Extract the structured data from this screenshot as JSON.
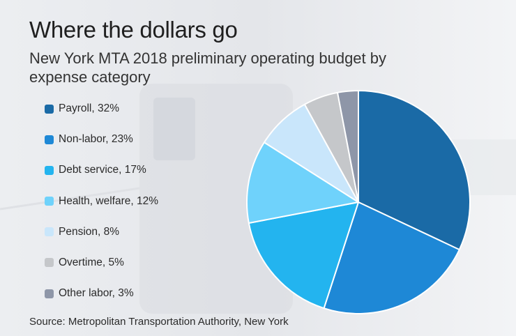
{
  "chart_data": {
    "type": "pie",
    "title": "Where the dollars go",
    "subtitle": "New York MTA 2018 preliminary operating budget by expense category",
    "source": "Source: Metropolitan Transportation Authority, New York",
    "legend_position": "left",
    "slices": [
      {
        "label": "Payroll, 32%",
        "value": 32,
        "color": "#1a6aa6"
      },
      {
        "label": "Non-labor, 23%",
        "value": 23,
        "color": "#1e88d6"
      },
      {
        "label": "Debt service, 17%",
        "value": 17,
        "color": "#23b4ef"
      },
      {
        "label": "Health, welfare, 12%",
        "value": 12,
        "color": "#6fd2fb"
      },
      {
        "label": "Pension, 8%",
        "value": 8,
        "color": "#c9e6fb"
      },
      {
        "label": "Overtime, 5%",
        "value": 5,
        "color": "#c5c7ca"
      },
      {
        "label": "Other labor, 3%",
        "value": 3,
        "color": "#8e96a8"
      }
    ]
  }
}
